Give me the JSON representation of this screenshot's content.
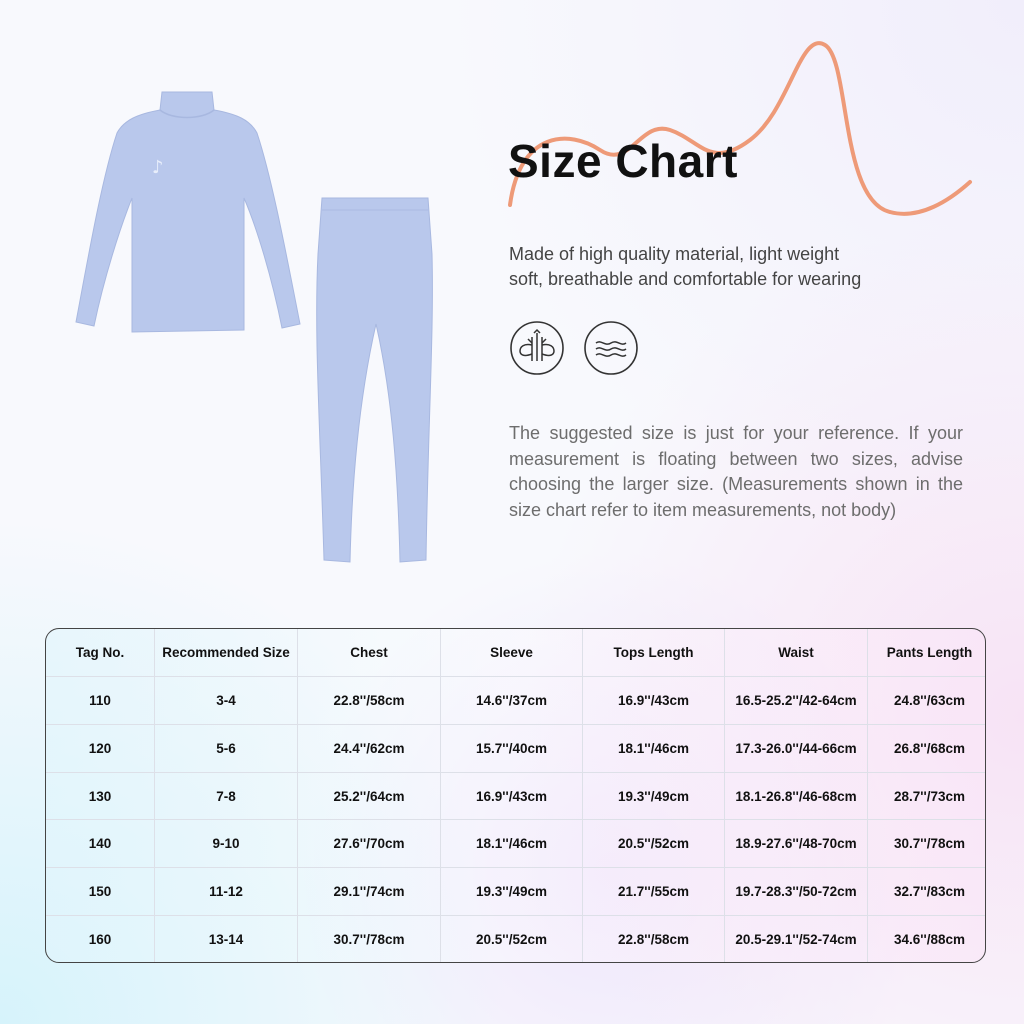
{
  "header": {
    "title": "Size Chart"
  },
  "description": [
    "Made of high quality material, light weight",
    "soft, breathable and comfortable for wearing"
  ],
  "feature_icons": [
    "breathable-fabric-icon",
    "soft-wave-icon"
  ],
  "note": "The suggested size is just for your reference. If your measurement is floating between two sizes, advise choosing the larger size. (Measurements shown in the size chart refer to item measurements, not body)",
  "colors": {
    "accent_curve": "#ee9a78",
    "garment": "#b9c8ec"
  },
  "table": {
    "headers": [
      "Tag No.",
      "Recommended Size",
      "Chest",
      "Sleeve",
      "Tops Length",
      "Waist",
      "Pants Length"
    ],
    "rows": [
      [
        "110",
        "3-4",
        "22.8''/58cm",
        "14.6''/37cm",
        "16.9''/43cm",
        "16.5-25.2''/42-64cm",
        "24.8''/63cm"
      ],
      [
        "120",
        "5-6",
        "24.4''/62cm",
        "15.7''/40cm",
        "18.1''/46cm",
        "17.3-26.0''/44-66cm",
        "26.8''/68cm"
      ],
      [
        "130",
        "7-8",
        "25.2''/64cm",
        "16.9''/43cm",
        "19.3''/49cm",
        "18.1-26.8''/46-68cm",
        "28.7''/73cm"
      ],
      [
        "140",
        "9-10",
        "27.6''/70cm",
        "18.1''/46cm",
        "20.5''/52cm",
        "18.9-27.6''/48-70cm",
        "30.7''/78cm"
      ],
      [
        "150",
        "11-12",
        "29.1''/74cm",
        "19.3''/49cm",
        "21.7''/55cm",
        "19.7-28.3''/50-72cm",
        "32.7''/83cm"
      ],
      [
        "160",
        "13-14",
        "30.7''/78cm",
        "20.5''/52cm",
        "22.8''/58cm",
        "20.5-29.1''/52-74cm",
        "34.6''/88cm"
      ]
    ]
  }
}
